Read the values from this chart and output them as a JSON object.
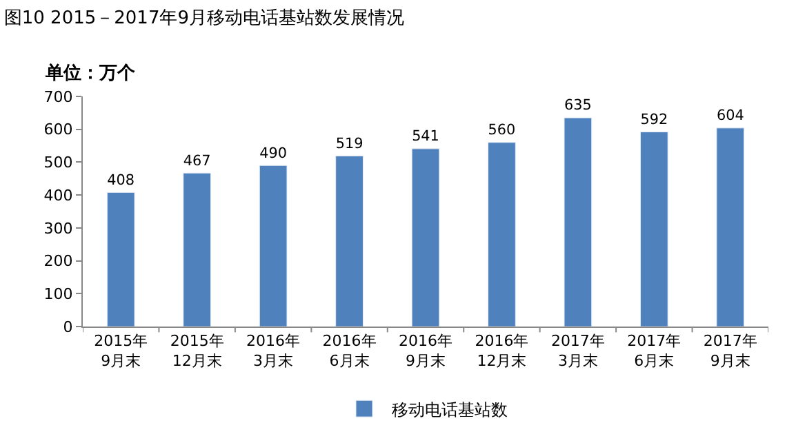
{
  "chart_data": {
    "type": "bar",
    "title": "图10 2015－2017年9月移动电话基站数发展情况",
    "ylabel": "单位：万个",
    "categories": [
      "2015年\n9月末",
      "2015年\n12月末",
      "2016年\n3月末",
      "2016年\n6月末",
      "2016年\n9月末",
      "2016年\n12月末",
      "2017年\n3月末",
      "2017年\n6月末",
      "2017年\n9月末"
    ],
    "series": [
      {
        "name": "移动电话基站数",
        "color": "#4f81bd",
        "values": [
          408,
          467,
          490,
          519,
          541,
          560,
          635,
          592,
          604
        ]
      }
    ],
    "ylim": [
      0,
      700
    ],
    "yticks": [
      0,
      100,
      200,
      300,
      400,
      500,
      600,
      700
    ],
    "grid": false,
    "legend": "bottom",
    "data_labels": true
  }
}
